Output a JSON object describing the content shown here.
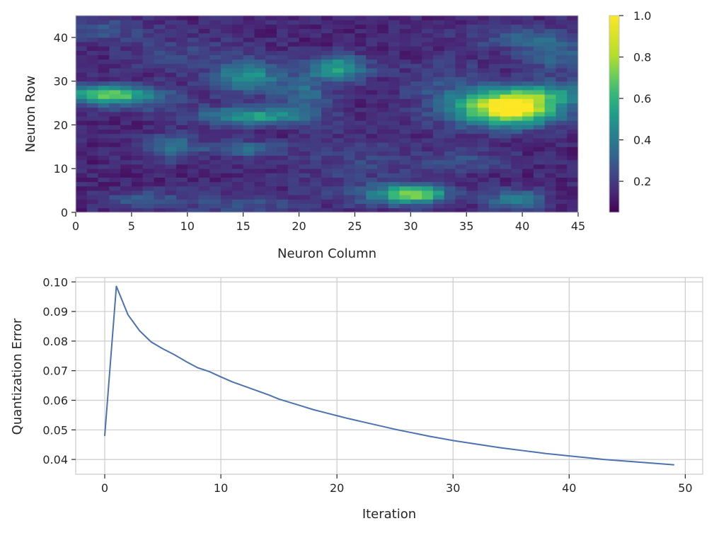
{
  "chart_data": [
    {
      "type": "heatmap",
      "title": "",
      "xlabel": "Neuron Column",
      "ylabel": "Neuron Row",
      "xlim": [
        0,
        45
      ],
      "ylim": [
        0,
        45
      ],
      "grid_size": [
        45,
        45
      ],
      "xticks": [
        0,
        5,
        10,
        15,
        20,
        25,
        30,
        35,
        40,
        45
      ],
      "yticks": [
        0,
        10,
        20,
        30,
        40
      ],
      "xtick_labels": [
        "0",
        "5",
        "10",
        "15",
        "20",
        "25",
        "30",
        "35",
        "40",
        "45"
      ],
      "ytick_labels": [
        "0",
        "10",
        "20",
        "30",
        "40"
      ],
      "colormap": "viridis",
      "color_range": [
        0.05,
        1.0
      ],
      "colorbar_ticks": [
        0.2,
        0.4,
        0.6,
        0.8,
        1.0
      ],
      "colorbar_tick_labels": [
        "0.2",
        "0.4",
        "0.6",
        "0.8",
        "1.0"
      ],
      "grid": false,
      "features": [
        {
          "x": 39.5,
          "y": 23.5,
          "sx": 2.8,
          "sy": 2.6,
          "v": 0.72
        },
        {
          "x": 42,
          "y": 27,
          "sx": 3.5,
          "sy": 2,
          "v": 0.35
        },
        {
          "x": 36,
          "y": 24,
          "sx": 3,
          "sy": 3,
          "v": 0.3
        },
        {
          "x": 2.5,
          "y": 27,
          "sx": 2.5,
          "sy": 1.4,
          "v": 0.55
        },
        {
          "x": 6,
          "y": 26,
          "sx": 3,
          "sy": 2,
          "v": 0.2
        },
        {
          "x": 16,
          "y": 22,
          "sx": 3.5,
          "sy": 1.4,
          "v": 0.45
        },
        {
          "x": 15.5,
          "y": 31,
          "sx": 2,
          "sy": 2.5,
          "v": 0.4
        },
        {
          "x": 23.5,
          "y": 33,
          "sx": 1.8,
          "sy": 2,
          "v": 0.45
        },
        {
          "x": 20.5,
          "y": 27,
          "sx": 1.5,
          "sy": 3,
          "v": 0.25
        },
        {
          "x": 30.5,
          "y": 4.2,
          "sx": 2,
          "sy": 1.4,
          "v": 0.55
        },
        {
          "x": 28,
          "y": 4,
          "sx": 3,
          "sy": 2,
          "v": 0.2
        },
        {
          "x": 39.5,
          "y": 3,
          "sx": 1.8,
          "sy": 1.5,
          "v": 0.35
        },
        {
          "x": 8.5,
          "y": 15,
          "sx": 1.5,
          "sy": 2,
          "v": 0.3
        },
        {
          "x": 15,
          "y": 14.5,
          "sx": 2.5,
          "sy": 1.2,
          "v": 0.25
        },
        {
          "x": 40,
          "y": 40,
          "sx": 4,
          "sy": 2,
          "v": 0.15
        },
        {
          "x": 43,
          "y": 36,
          "sx": 2,
          "sy": 3,
          "v": 0.2
        },
        {
          "x": 10,
          "y": 36,
          "sx": 4,
          "sy": 3,
          "v": 0.1
        },
        {
          "x": 2,
          "y": 42,
          "sx": 3,
          "sy": 2,
          "v": 0.15
        },
        {
          "x": 15,
          "y": 2,
          "sx": 4,
          "sy": 2,
          "v": 0.12
        },
        {
          "x": 25,
          "y": 12,
          "sx": 4,
          "sy": 4,
          "v": 0.1
        },
        {
          "x": 33,
          "y": 30,
          "sx": 3,
          "sy": 4,
          "v": 0.1
        },
        {
          "x": 35,
          "y": 12,
          "sx": 3,
          "sy": 2,
          "v": 0.12
        },
        {
          "x": 6,
          "y": 3,
          "sx": 3,
          "sy": 1.5,
          "v": 0.15
        }
      ],
      "base_value": 0.15
    },
    {
      "type": "line",
      "title": "",
      "xlabel": "Iteration",
      "ylabel": "Quantization Error",
      "xlim": [
        -2.5,
        51.5
      ],
      "ylim": [
        0.035,
        0.1015
      ],
      "xticks": [
        0,
        10,
        20,
        30,
        40,
        50
      ],
      "yticks": [
        0.04,
        0.05,
        0.06,
        0.07,
        0.08,
        0.09,
        0.1
      ],
      "xtick_labels": [
        "0",
        "10",
        "20",
        "30",
        "40",
        "50"
      ],
      "ytick_labels": [
        "0.04",
        "0.05",
        "0.06",
        "0.07",
        "0.08",
        "0.09",
        "0.10"
      ],
      "grid": true,
      "series": [
        {
          "color": "#4c72b0",
          "x": [
            0,
            1,
            2,
            3,
            4,
            5,
            6,
            7,
            8,
            9,
            10,
            11,
            12,
            13,
            14,
            15,
            16,
            17,
            18,
            19,
            20,
            21,
            22,
            23,
            24,
            25,
            26,
            27,
            28,
            29,
            30,
            31,
            32,
            33,
            34,
            35,
            36,
            37,
            38,
            39,
            40,
            41,
            42,
            43,
            44,
            45,
            46,
            47,
            48,
            49
          ],
          "y": [
            0.0481,
            0.0985,
            0.0889,
            0.0835,
            0.0797,
            0.0774,
            0.0754,
            0.0731,
            0.071,
            0.0697,
            0.0679,
            0.0662,
            0.0648,
            0.0634,
            0.062,
            0.0604,
            0.0592,
            0.058,
            0.0568,
            0.0558,
            0.0548,
            0.0538,
            0.0529,
            0.052,
            0.0511,
            0.0502,
            0.0494,
            0.0486,
            0.0478,
            0.0471,
            0.0464,
            0.0458,
            0.0452,
            0.0446,
            0.044,
            0.0435,
            0.043,
            0.0425,
            0.042,
            0.0416,
            0.0412,
            0.0408,
            0.0404,
            0.04,
            0.0397,
            0.0394,
            0.0391,
            0.0388,
            0.0385,
            0.0382
          ]
        }
      ]
    }
  ]
}
